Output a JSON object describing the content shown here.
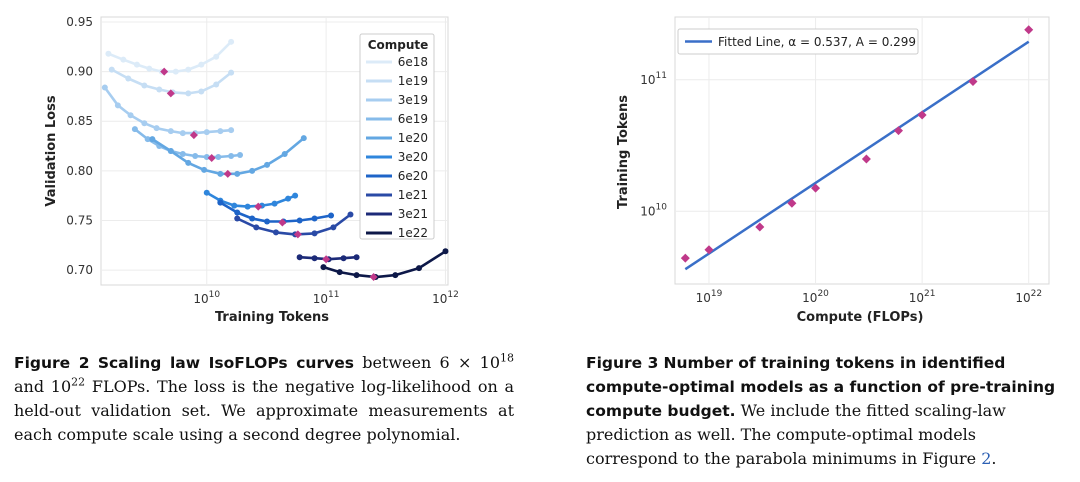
{
  "figure2": {
    "caption_label": "Figure 2",
    "caption_title": "Scaling law IsoFLOPs curves",
    "caption_text_1": " between 6 × 10",
    "caption_sup_1": "18",
    "caption_text_2": " and 10",
    "caption_sup_2": "22",
    "caption_text_3": " FLOPs.  The loss is the negative log-likelihood on a held-out validation set. We approximate measurements at each compute scale using a second degree polynomial.",
    "chart_data": {
      "type": "scatter",
      "title": "",
      "xlabel": "Training Tokens",
      "ylabel": "Validation Loss",
      "xscale": "log",
      "xlim": [
        1300000000.0,
        1050000000000.0
      ],
      "ylim": [
        0.685,
        0.955
      ],
      "x_ticks": [
        {
          "base": "10",
          "exp": "10",
          "value": 10000000000.0
        },
        {
          "base": "10",
          "exp": "11",
          "value": 100000000000.0
        },
        {
          "base": "10",
          "exp": "12",
          "value": 1000000000000.0
        }
      ],
      "y_ticks": [
        "0.70",
        "0.75",
        "0.80",
        "0.85",
        "0.90",
        "0.95"
      ],
      "legend_title": "Compute",
      "legend_position": "top-right",
      "series": [
        {
          "name": "6e18",
          "color": "#dcebf8",
          "x": [
            1500000000.0,
            2000000000.0,
            2600000000.0,
            3300000000.0,
            4200000000.0,
            5500000000.0,
            7000000000.0,
            9000000000.0,
            12000000000.0,
            16000000000.0
          ],
          "y": [
            0.918,
            0.912,
            0.907,
            0.903,
            0.9,
            0.9,
            0.902,
            0.907,
            0.915,
            0.93
          ],
          "opt": [
            4400000000.0,
            0.9
          ]
        },
        {
          "name": "1e19",
          "color": "#c6def4",
          "x": [
            1600000000.0,
            2200000000.0,
            3000000000.0,
            4000000000.0,
            5200000000.0,
            7000000000.0,
            9000000000.0,
            12000000000.0,
            16000000000.0
          ],
          "y": [
            0.902,
            0.893,
            0.886,
            0.882,
            0.879,
            0.878,
            0.88,
            0.887,
            0.899
          ],
          "opt": [
            5000000000.0,
            0.878
          ]
        },
        {
          "name": "3e19",
          "color": "#a7cdf0",
          "x": [
            1400000000.0,
            1800000000.0,
            2300000000.0,
            3000000000.0,
            3800000000.0,
            5000000000.0,
            6300000000.0,
            8000000000.0,
            10000000000.0,
            13000000000.0,
            16000000000.0
          ],
          "y": [
            0.884,
            0.866,
            0.856,
            0.848,
            0.843,
            0.84,
            0.838,
            0.838,
            0.839,
            0.84,
            0.841
          ],
          "opt": [
            7800000000.0,
            0.836
          ]
        },
        {
          "name": "6e19",
          "color": "#86bbea",
          "x": [
            2500000000.0,
            3200000000.0,
            4000000000.0,
            5000000000.0,
            6300000000.0,
            8000000000.0,
            10000000000.0,
            12500000000.0,
            16000000000.0,
            19000000000.0
          ],
          "y": [
            0.842,
            0.832,
            0.825,
            0.82,
            0.817,
            0.815,
            0.814,
            0.814,
            0.815,
            0.816
          ],
          "opt": [
            11000000000.0,
            0.813
          ]
        },
        {
          "name": "1e20",
          "color": "#63a7e2",
          "x": [
            3500000000.0,
            5000000000.0,
            7000000000.0,
            9500000000.0,
            13000000000.0,
            18000000000.0,
            24000000000.0,
            32000000000.0,
            45000000000.0,
            65000000000.0
          ],
          "y": [
            0.832,
            0.82,
            0.808,
            0.801,
            0.797,
            0.797,
            0.8,
            0.806,
            0.817,
            0.833
          ],
          "opt": [
            15000000000.0,
            0.797
          ]
        },
        {
          "name": "3e20",
          "color": "#2f86dc",
          "x": [
            10000000000.0,
            13000000000.0,
            17000000000.0,
            22000000000.0,
            29000000000.0,
            37000000000.0,
            48000000000.0,
            55000000000.0
          ],
          "y": [
            0.778,
            0.77,
            0.765,
            0.764,
            0.765,
            0.767,
            0.772,
            0.775
          ],
          "opt": [
            27000000000.0,
            0.764
          ]
        },
        {
          "name": "6e20",
          "color": "#1e64c8",
          "x": [
            13000000000.0,
            18000000000.0,
            24000000000.0,
            32000000000.0,
            44000000000.0,
            60000000000.0,
            80000000000.0,
            110000000000.0
          ],
          "y": [
            0.768,
            0.758,
            0.752,
            0.749,
            0.749,
            0.75,
            0.752,
            0.755
          ],
          "opt": [
            43000000000.0,
            0.748
          ]
        },
        {
          "name": "1e21",
          "color": "#2a4aa6",
          "x": [
            18000000000.0,
            26000000000.0,
            38000000000.0,
            55000000000.0,
            80000000000.0,
            115000000000.0,
            160000000000.0
          ],
          "y": [
            0.752,
            0.743,
            0.738,
            0.736,
            0.737,
            0.743,
            0.756
          ],
          "opt": [
            58000000000.0,
            0.736
          ]
        },
        {
          "name": "3e21",
          "color": "#1c2a78",
          "x": [
            60000000000.0,
            80000000000.0,
            105000000000.0,
            140000000000.0,
            180000000000.0
          ],
          "y": [
            0.713,
            0.712,
            0.711,
            0.712,
            0.713
          ],
          "opt": [
            100000000000.0,
            0.711
          ]
        },
        {
          "name": "1e22",
          "color": "#0d1848",
          "x": [
            95000000000.0,
            130000000000.0,
            180000000000.0,
            260000000000.0,
            380000000000.0,
            600000000000.0,
            1000000000000.0
          ],
          "y": [
            0.703,
            0.698,
            0.695,
            0.693,
            0.695,
            0.702,
            0.719
          ],
          "opt": [
            250000000000.0,
            0.693
          ]
        }
      ]
    }
  },
  "figure3": {
    "caption_label": "Figure 3",
    "caption_title": "Number of training tokens in identified compute-optimal models as a function of pre-training compute budget.",
    "caption_text": " We include the fitted scaling-law prediction as well. The compute-optimal models correspond to the parabola minimums in Figure ",
    "caption_ref": "2",
    "caption_end": ".",
    "chart_data": {
      "type": "scatter",
      "title": "",
      "xlabel": "Compute (FLOPs)",
      "ylabel": "Training Tokens",
      "xscale": "log",
      "yscale": "log",
      "xlim": [
        4.8e+18,
        1.55e+22
      ],
      "ylim": [
        2800000000.0,
        300000000000.0
      ],
      "x_ticks": [
        {
          "base": "10",
          "exp": "19",
          "value": 1e+19
        },
        {
          "base": "10",
          "exp": "20",
          "value": 1e+20
        },
        {
          "base": "10",
          "exp": "21",
          "value": 1e+21
        },
        {
          "base": "10",
          "exp": "22",
          "value": 1e+22
        }
      ],
      "y_ticks": [
        {
          "base": "10",
          "exp": "10",
          "value": 10000000000.0
        },
        {
          "base": "10",
          "exp": "11",
          "value": 100000000000.0
        }
      ],
      "legend_label": "Fitted Line, α = 0.537, A = 0.299",
      "legend_position": "top-left",
      "fit": {
        "alpha": 0.537,
        "A": 0.299,
        "color": "#3a6fc8"
      },
      "points": {
        "color": "#c0398a",
        "compute": [
          6e+18,
          1e+19,
          3e+19,
          6e+19,
          1e+20,
          3e+20,
          6e+20,
          1e+21,
          3e+21,
          1e+22
        ],
        "tokens": [
          4400000000.0,
          5100000000.0,
          7600000000.0,
          11500000000.0,
          15000000000.0,
          25000000000.0,
          41000000000.0,
          54000000000.0,
          97000000000.0,
          240000000000.0
        ]
      }
    }
  }
}
